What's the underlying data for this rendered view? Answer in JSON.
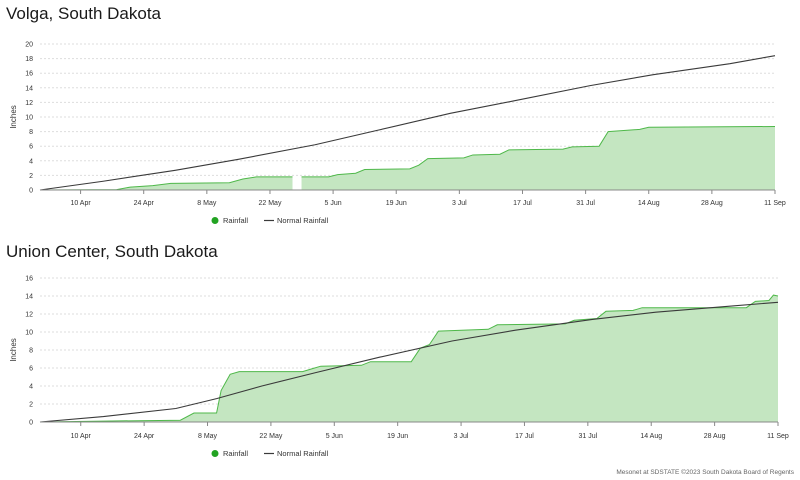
{
  "colors": {
    "rainfall_fill": "#c4e6c1",
    "rainfall_line": "#4fb84a",
    "rainfall_legend": "#22a322",
    "normal_line": "#3a3a3a",
    "grid": "#dddddd",
    "axis": "#888888",
    "text": "#333333"
  },
  "credit": "Mesonet at SDSTATE ©2023 South Dakota Board of Regents",
  "chart_data": [
    {
      "type": "area",
      "title": "Volga, South Dakota",
      "xlabel": "",
      "ylabel": "Inches",
      "ylim": [
        0,
        20
      ],
      "yticks": [
        0,
        2,
        4,
        6,
        8,
        10,
        12,
        14,
        16,
        18,
        20
      ],
      "xlim": [
        "2023-04-01",
        "2023-09-11"
      ],
      "xticks": [
        "10 Apr",
        "24 Apr",
        "8 May",
        "22 May",
        "5 Jun",
        "19 Jun",
        "3 Jul",
        "17 Jul",
        "31 Jul",
        "14 Aug",
        "28 Aug",
        "11 Sep"
      ],
      "xtick_dates": [
        "2023-04-10",
        "2023-04-24",
        "2023-05-08",
        "2023-05-22",
        "2023-06-05",
        "2023-06-19",
        "2023-07-03",
        "2023-07-17",
        "2023-07-31",
        "2023-08-14",
        "2023-08-28",
        "2023-09-11"
      ],
      "grid": true,
      "legend_position": "bottom-left",
      "series": [
        {
          "name": "Rainfall",
          "kind": "area",
          "points": [
            [
              "2023-04-01",
              0
            ],
            [
              "2023-04-18",
              0.05
            ],
            [
              "2023-04-21",
              0.4
            ],
            [
              "2023-04-26",
              0.6
            ],
            [
              "2023-04-30",
              0.9
            ],
            [
              "2023-05-13",
              1.0
            ],
            [
              "2023-05-16",
              1.5
            ],
            [
              "2023-05-19",
              1.8
            ],
            [
              "2023-05-27",
              1.8
            ],
            [
              null,
              null
            ],
            [
              "2023-05-29",
              1.8
            ],
            [
              "2023-06-04",
              1.8
            ],
            [
              "2023-06-06",
              2.1
            ],
            [
              "2023-06-10",
              2.3
            ],
            [
              "2023-06-12",
              2.8
            ],
            [
              "2023-06-22",
              2.9
            ],
            [
              "2023-06-24",
              3.4
            ],
            [
              "2023-06-26",
              4.3
            ],
            [
              "2023-07-04",
              4.4
            ],
            [
              "2023-07-06",
              4.8
            ],
            [
              "2023-07-12",
              4.9
            ],
            [
              "2023-07-14",
              5.5
            ],
            [
              "2023-07-26",
              5.6
            ],
            [
              "2023-07-28",
              5.9
            ],
            [
              "2023-08-03",
              6.0
            ],
            [
              "2023-08-05",
              8.0
            ],
            [
              "2023-08-12",
              8.3
            ],
            [
              "2023-08-14",
              8.6
            ],
            [
              "2023-09-11",
              8.7
            ]
          ]
        },
        {
          "name": "Normal Rainfall",
          "kind": "line",
          "points": [
            [
              "2023-04-01",
              0
            ],
            [
              "2023-04-15",
              1.2
            ],
            [
              "2023-05-01",
              2.7
            ],
            [
              "2023-05-15",
              4.2
            ],
            [
              "2023-06-01",
              6.2
            ],
            [
              "2023-06-15",
              8.2
            ],
            [
              "2023-07-01",
              10.5
            ],
            [
              "2023-07-15",
              12.2
            ],
            [
              "2023-08-01",
              14.3
            ],
            [
              "2023-08-15",
              15.8
            ],
            [
              "2023-09-01",
              17.3
            ],
            [
              "2023-09-11",
              18.4
            ]
          ]
        }
      ]
    },
    {
      "type": "area",
      "title": "Union Center, South Dakota",
      "xlabel": "",
      "ylabel": "Inches",
      "ylim": [
        0,
        16
      ],
      "yticks": [
        0,
        2,
        4,
        6,
        8,
        10,
        12,
        14,
        16
      ],
      "xlim": [
        "2023-04-01",
        "2023-09-11"
      ],
      "xticks": [
        "10 Apr",
        "24 Apr",
        "8 May",
        "22 May",
        "5 Jun",
        "19 Jun",
        "3 Jul",
        "17 Jul",
        "31 Jul",
        "14 Aug",
        "28 Aug",
        "11 Sep"
      ],
      "xtick_dates": [
        "2023-04-10",
        "2023-04-24",
        "2023-05-08",
        "2023-05-22",
        "2023-06-05",
        "2023-06-19",
        "2023-07-03",
        "2023-07-17",
        "2023-07-31",
        "2023-08-14",
        "2023-08-28",
        "2023-09-11"
      ],
      "grid": true,
      "legend_position": "bottom-left",
      "series": [
        {
          "name": "Rainfall",
          "kind": "area",
          "points": [
            [
              "2023-04-01",
              0
            ],
            [
              "2023-04-15",
              0.1
            ],
            [
              "2023-05-02",
              0.2
            ],
            [
              "2023-05-05",
              1.0
            ],
            [
              "2023-05-10",
              1.0
            ],
            [
              "2023-05-11",
              3.5
            ],
            [
              "2023-05-13",
              5.3
            ],
            [
              "2023-05-15",
              5.6
            ],
            [
              "2023-05-29",
              5.6
            ],
            [
              "2023-05-31",
              5.9
            ],
            [
              "2023-06-02",
              6.2
            ],
            [
              "2023-06-11",
              6.3
            ],
            [
              "2023-06-13",
              6.7
            ],
            [
              "2023-06-22",
              6.7
            ],
            [
              "2023-06-24",
              8.2
            ],
            [
              "2023-06-26",
              8.6
            ],
            [
              "2023-06-28",
              10.1
            ],
            [
              "2023-07-09",
              10.3
            ],
            [
              "2023-07-11",
              10.8
            ],
            [
              "2023-07-26",
              10.9
            ],
            [
              "2023-07-28",
              11.3
            ],
            [
              "2023-08-02",
              11.5
            ],
            [
              "2023-08-04",
              12.3
            ],
            [
              "2023-08-10",
              12.4
            ],
            [
              "2023-08-12",
              12.7
            ],
            [
              "2023-09-04",
              12.7
            ],
            [
              "2023-09-06",
              13.4
            ],
            [
              "2023-09-09",
              13.5
            ],
            [
              "2023-09-10",
              14.1
            ],
            [
              "2023-09-11",
              14.0
            ]
          ]
        },
        {
          "name": "Normal Rainfall",
          "kind": "line",
          "points": [
            [
              "2023-04-01",
              0
            ],
            [
              "2023-04-15",
              0.6
            ],
            [
              "2023-05-01",
              1.5
            ],
            [
              "2023-05-10",
              2.6
            ],
            [
              "2023-05-20",
              4.0
            ],
            [
              "2023-06-01",
              5.5
            ],
            [
              "2023-06-15",
              7.2
            ],
            [
              "2023-07-01",
              9.0
            ],
            [
              "2023-07-15",
              10.2
            ],
            [
              "2023-08-01",
              11.4
            ],
            [
              "2023-08-15",
              12.2
            ],
            [
              "2023-09-01",
              12.9
            ],
            [
              "2023-09-11",
              13.3
            ]
          ]
        }
      ]
    }
  ]
}
